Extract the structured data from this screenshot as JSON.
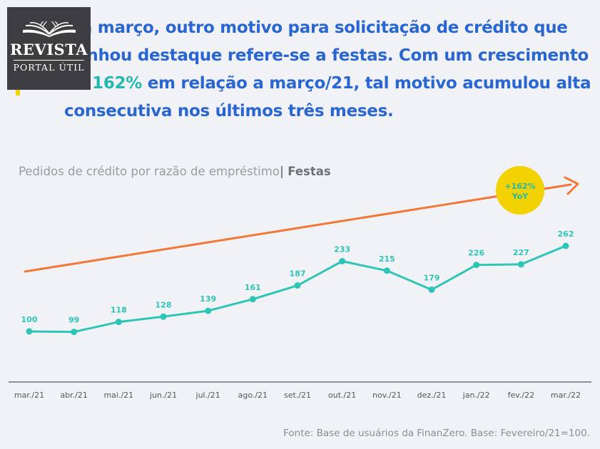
{
  "logo": {
    "line1": "REVISTA",
    "line2": "PORTAL ÚTIL"
  },
  "headline": {
    "part1": "Em março, outro motivo para solicitação de crédito que ganhou destaque refere-se a festas. Com um crescimento de ",
    "highlight": "162%",
    "part2": " em relação a março/21, tal motivo acumulou alta consecutiva nos últimos três meses."
  },
  "chart_title": {
    "main": "Pedidos de crédito por razão de empréstimo",
    "separator": "|",
    "subtitle": "Festas"
  },
  "badge": {
    "line1": "+162%",
    "line2": "YoY"
  },
  "source": "Fonte: Base de usuários da FinanZero. Base: Fevereiro/21=100.",
  "colors": {
    "line": "#2ec4b6",
    "trend": "#f2783a",
    "badge": "#f2d200",
    "headline": "#2a66d2",
    "highlight": "#22b8b0",
    "badge_text": "#22b8b0"
  },
  "chart_data": {
    "type": "line",
    "title": "Pedidos de crédito por razão de empréstimo | Festas",
    "categories": [
      "mar./21",
      "abr./21",
      "mai./21",
      "jun./21",
      "jul./21",
      "ago./21",
      "set./21",
      "out./21",
      "nov./21",
      "dez./21",
      "jan./22",
      "fev./22",
      "mar./22"
    ],
    "values": [
      100,
      99,
      118,
      128,
      139,
      161,
      187,
      233,
      215,
      179,
      226,
      227,
      262
    ],
    "data_labels": [
      "100",
      "99",
      "118",
      "128",
      "139",
      "161",
      "187",
      "233",
      "215",
      "179",
      "226",
      "227",
      "262"
    ],
    "trend_arrow": true,
    "grid": false,
    "legend": "none"
  }
}
